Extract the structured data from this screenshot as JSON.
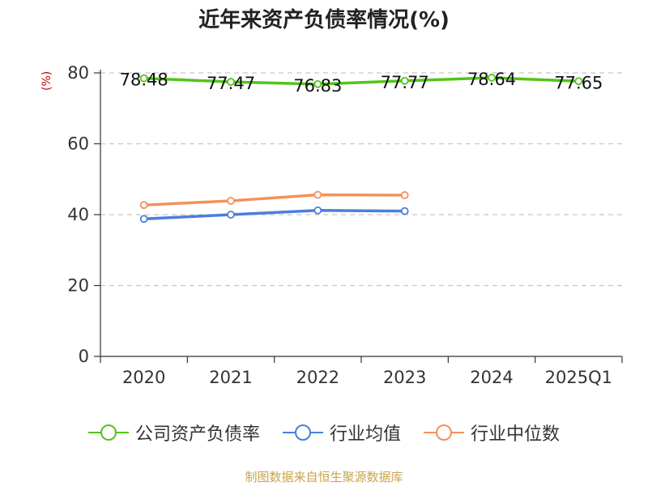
{
  "chart_data": {
    "type": "line",
    "title": "近年来资产负债率情况(%)",
    "ylabel": "(%)",
    "categories": [
      "2020",
      "2021",
      "2022",
      "2023",
      "2024",
      "2025Q1"
    ],
    "ylim": [
      0,
      80
    ],
    "yticks": [
      0,
      20,
      40,
      60,
      80
    ],
    "grid": true,
    "legend_position": "bottom",
    "series": [
      {
        "name": "公司资产负债率",
        "color": "#52c41a",
        "values": [
          78.48,
          77.47,
          76.83,
          77.77,
          78.64,
          77.65
        ],
        "data_labels": [
          "78.48",
          "77.47",
          "76.83",
          "77.77",
          "78.64",
          "77.65"
        ]
      },
      {
        "name": "行业均值",
        "color": "#4a7fdc",
        "values": [
          38.8,
          40.0,
          41.2,
          41.0,
          null,
          null
        ]
      },
      {
        "name": "行业中位数",
        "color": "#f5905a",
        "values": [
          42.7,
          43.9,
          45.6,
          45.5,
          null,
          null
        ]
      }
    ]
  },
  "source_text": "制图数据来自恒生聚源数据库"
}
